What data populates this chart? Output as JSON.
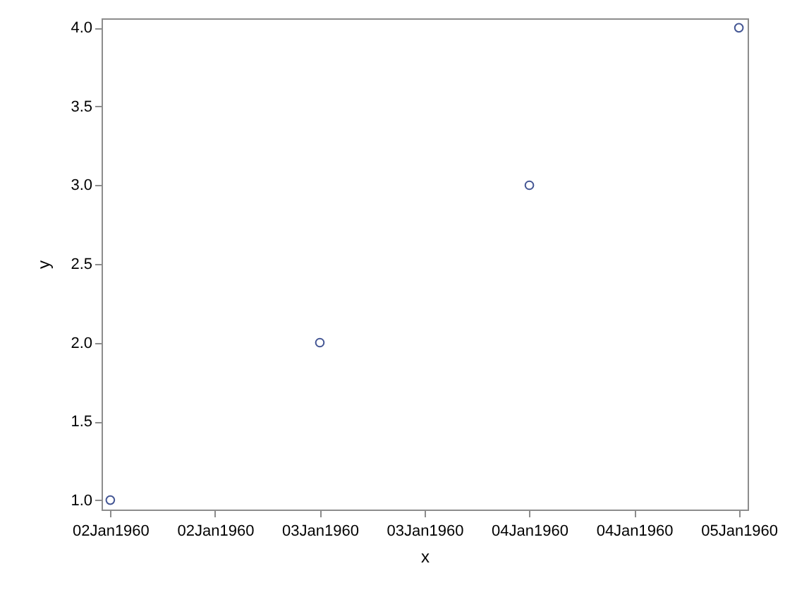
{
  "chart_data": {
    "type": "scatter",
    "xlabel": "x",
    "ylabel": "y",
    "x": [
      "1960-01-02",
      "1960-01-03",
      "1960-01-04",
      "1960-01-05"
    ],
    "series": [
      {
        "color": "#445694",
        "values": [
          1,
          2,
          3,
          4
        ]
      }
    ],
    "xlim": [
      "1960-01-01T23:00",
      "1960-01-05T01:00"
    ],
    "xticks": [
      {
        "value": "1960-01-02T00:00",
        "label": "02Jan1960"
      },
      {
        "value": "1960-01-02T12:00",
        "label": "02Jan1960"
      },
      {
        "value": "1960-01-03T00:00",
        "label": "03Jan1960"
      },
      {
        "value": "1960-01-03T12:00",
        "label": "03Jan1960"
      },
      {
        "value": "1960-01-04T00:00",
        "label": "04Jan1960"
      },
      {
        "value": "1960-01-04T12:00",
        "label": "04Jan1960"
      },
      {
        "value": "1960-01-05T00:00",
        "label": "05Jan1960"
      }
    ],
    "ylim": [
      0.94,
      4.06
    ],
    "yticks": [
      {
        "value": 1,
        "label": "1.0"
      },
      {
        "value": 1.5,
        "label": "1.5"
      },
      {
        "value": 2,
        "label": "2.0"
      },
      {
        "value": 2.5,
        "label": "2.5"
      },
      {
        "value": 3,
        "label": "3.0"
      },
      {
        "value": 3.5,
        "label": "3.5"
      },
      {
        "value": 4,
        "label": "4.0"
      }
    ],
    "grid": false,
    "marker": "circle"
  }
}
